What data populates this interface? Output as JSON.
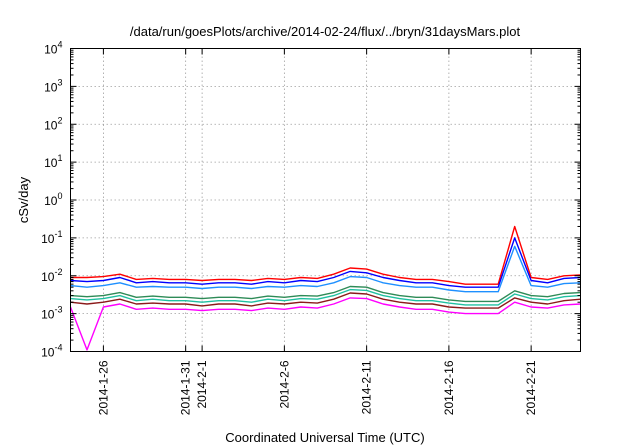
{
  "chart_data": {
    "type": "line",
    "title": "/data/run/goesPlots/archive/2014-02-24/flux/../bryn/31daysMars.plot",
    "xlabel": "Coordinated Universal Time (UTC)",
    "ylabel": "cSv/day",
    "yscale": "log",
    "ylim": [
      0.0001,
      10000
    ],
    "xlim": [
      "2014-01-24",
      "2014-02-24"
    ],
    "grid": true,
    "x_ticks": [
      {
        "label": "2014-1-26",
        "date": "2014-01-26"
      },
      {
        "label": "2014-1-31",
        "date": "2014-01-31"
      },
      {
        "label": "2014-2-1",
        "date": "2014-02-01"
      },
      {
        "label": "2014-2-6",
        "date": "2014-02-06"
      },
      {
        "label": "2014-2-11",
        "date": "2014-02-11"
      },
      {
        "label": "2014-2-16",
        "date": "2014-02-16"
      },
      {
        "label": "2014-2-21",
        "date": "2014-02-21"
      }
    ],
    "y_ticks": [
      {
        "base": "10",
        "exp": "-4",
        "value": 0.0001
      },
      {
        "base": "10",
        "exp": "-3",
        "value": 0.001
      },
      {
        "base": "10",
        "exp": "-2",
        "value": 0.01
      },
      {
        "base": "10",
        "exp": "-1",
        "value": 0.1
      },
      {
        "base": "10",
        "exp": "0",
        "value": 1
      },
      {
        "base": "10",
        "exp": "1",
        "value": 10
      },
      {
        "base": "10",
        "exp": "2",
        "value": 100
      },
      {
        "base": "10",
        "exp": "3",
        "value": 1000
      },
      {
        "base": "10",
        "exp": "4",
        "value": 10000
      }
    ],
    "x": [
      "2014-01-24",
      "2014-01-25",
      "2014-01-26",
      "2014-01-27",
      "2014-01-28",
      "2014-01-29",
      "2014-01-30",
      "2014-01-31",
      "2014-02-01",
      "2014-02-02",
      "2014-02-03",
      "2014-02-04",
      "2014-02-05",
      "2014-02-06",
      "2014-02-07",
      "2014-02-08",
      "2014-02-09",
      "2014-02-10",
      "2014-02-11",
      "2014-02-12",
      "2014-02-13",
      "2014-02-14",
      "2014-02-15",
      "2014-02-16",
      "2014-02-17",
      "2014-02-18",
      "2014-02-19",
      "2014-02-20",
      "2014-02-21",
      "2014-02-22",
      "2014-02-23",
      "2014-02-24"
    ],
    "series": [
      {
        "color": "#ff0000",
        "values": [
          0.009,
          0.009,
          0.0095,
          0.011,
          0.008,
          0.0085,
          0.008,
          0.008,
          0.0075,
          0.008,
          0.008,
          0.0075,
          0.0085,
          0.008,
          0.009,
          0.0085,
          0.011,
          0.016,
          0.015,
          0.011,
          0.009,
          0.008,
          0.008,
          0.007,
          0.006,
          0.006,
          0.006,
          0.2,
          0.009,
          0.008,
          0.01,
          0.0105
        ]
      },
      {
        "color": "#0000ff",
        "values": [
          0.0075,
          0.007,
          0.0075,
          0.009,
          0.0065,
          0.007,
          0.0065,
          0.0065,
          0.006,
          0.0065,
          0.0065,
          0.006,
          0.007,
          0.0065,
          0.0075,
          0.007,
          0.009,
          0.013,
          0.012,
          0.009,
          0.0075,
          0.0065,
          0.0065,
          0.0055,
          0.005,
          0.005,
          0.005,
          0.1,
          0.0075,
          0.0065,
          0.0085,
          0.009
        ]
      },
      {
        "color": "#1e90ff",
        "values": [
          0.0055,
          0.005,
          0.0055,
          0.0065,
          0.005,
          0.0052,
          0.005,
          0.005,
          0.0046,
          0.005,
          0.005,
          0.0046,
          0.0052,
          0.005,
          0.0055,
          0.0052,
          0.0065,
          0.0095,
          0.009,
          0.0065,
          0.0055,
          0.005,
          0.005,
          0.0042,
          0.0038,
          0.0038,
          0.0038,
          0.06,
          0.0055,
          0.005,
          0.0062,
          0.0065
        ]
      },
      {
        "color": "#2e8b57",
        "values": [
          0.003,
          0.0028,
          0.003,
          0.0036,
          0.0027,
          0.0029,
          0.0027,
          0.0027,
          0.0025,
          0.0027,
          0.0027,
          0.0025,
          0.0029,
          0.0027,
          0.003,
          0.0029,
          0.0036,
          0.0052,
          0.005,
          0.0036,
          0.003,
          0.0027,
          0.0027,
          0.0023,
          0.0021,
          0.0021,
          0.0021,
          0.004,
          0.003,
          0.0028,
          0.0034,
          0.0036
        ]
      },
      {
        "color": "#20c0a0",
        "values": [
          0.0025,
          0.0023,
          0.0025,
          0.003,
          0.0022,
          0.0024,
          0.0022,
          0.0022,
          0.002,
          0.0022,
          0.0022,
          0.002,
          0.0024,
          0.0022,
          0.0025,
          0.0024,
          0.003,
          0.0043,
          0.0041,
          0.003,
          0.0025,
          0.0022,
          0.0022,
          0.0019,
          0.0017,
          0.0017,
          0.0017,
          0.0033,
          0.0025,
          0.0023,
          0.0028,
          0.003
        ]
      },
      {
        "color": "#8b1a1a",
        "values": [
          0.002,
          0.0018,
          0.002,
          0.0024,
          0.0018,
          0.0019,
          0.0018,
          0.0018,
          0.0016,
          0.0018,
          0.0018,
          0.0016,
          0.0019,
          0.0018,
          0.002,
          0.0019,
          0.0024,
          0.0035,
          0.0033,
          0.0024,
          0.002,
          0.0018,
          0.0018,
          0.0015,
          0.0014,
          0.0014,
          0.0014,
          0.0026,
          0.002,
          0.0018,
          0.0022,
          0.0024
        ]
      },
      {
        "color": "#ff00ff",
        "values": [
          0.0015,
          0.00011,
          0.0015,
          0.0018,
          0.0013,
          0.0014,
          0.0013,
          0.0013,
          0.0012,
          0.0013,
          0.0013,
          0.0012,
          0.0014,
          0.0013,
          0.0015,
          0.0014,
          0.0018,
          0.0026,
          0.0025,
          0.0018,
          0.0015,
          0.0013,
          0.0013,
          0.0011,
          0.001,
          0.001,
          0.001,
          0.002,
          0.0015,
          0.0014,
          0.0017,
          0.0018
        ]
      }
    ]
  }
}
